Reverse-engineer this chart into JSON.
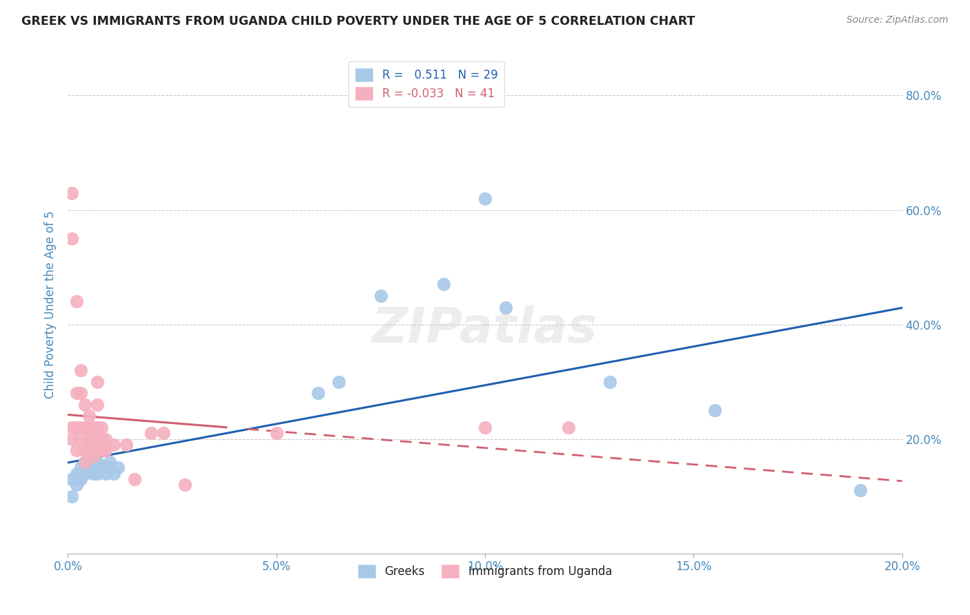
{
  "title": "GREEK VS IMMIGRANTS FROM UGANDA CHILD POVERTY UNDER THE AGE OF 5 CORRELATION CHART",
  "source": "Source: ZipAtlas.com",
  "ylabel_left": "Child Poverty Under the Age of 5",
  "legend_label1": "R =   0.511   N = 29",
  "legend_label2": "R = -0.033   N = 41",
  "legend_bottom_label1": "Greeks",
  "legend_bottom_label2": "Immigrants from Uganda",
  "blue_color": "#a8c8e8",
  "pink_color": "#f4b0be",
  "blue_line_color": "#2060b0",
  "pink_line_color": "#d06070",
  "background_color": "#ffffff",
  "grid_color": "#bbbbbb",
  "title_color": "#222222",
  "axis_label_color": "#4488bb",
  "tick_color": "#4488bb",
  "greek_x": [
    0.001,
    0.001,
    0.002,
    0.002,
    0.003,
    0.003,
    0.004,
    0.004,
    0.005,
    0.005,
    0.006,
    0.006,
    0.007,
    0.007,
    0.008,
    0.009,
    0.01,
    0.01,
    0.011,
    0.012,
    0.06,
    0.065,
    0.075,
    0.09,
    0.1,
    0.105,
    0.13,
    0.155,
    0.19
  ],
  "greek_y": [
    0.1,
    0.13,
    0.12,
    0.14,
    0.13,
    0.15,
    0.14,
    0.16,
    0.15,
    0.16,
    0.14,
    0.15,
    0.14,
    0.16,
    0.15,
    0.14,
    0.15,
    0.16,
    0.14,
    0.15,
    0.28,
    0.3,
    0.45,
    0.47,
    0.62,
    0.43,
    0.3,
    0.25,
    0.11
  ],
  "uganda_x": [
    0.001,
    0.001,
    0.001,
    0.001,
    0.002,
    0.002,
    0.002,
    0.002,
    0.003,
    0.003,
    0.003,
    0.003,
    0.004,
    0.004,
    0.004,
    0.004,
    0.005,
    0.005,
    0.005,
    0.005,
    0.006,
    0.006,
    0.006,
    0.006,
    0.007,
    0.007,
    0.007,
    0.008,
    0.008,
    0.008,
    0.009,
    0.009,
    0.011,
    0.014,
    0.016,
    0.02,
    0.023,
    0.028,
    0.05,
    0.1,
    0.12
  ],
  "uganda_y": [
    0.63,
    0.55,
    0.22,
    0.2,
    0.44,
    0.28,
    0.22,
    0.18,
    0.32,
    0.28,
    0.22,
    0.2,
    0.26,
    0.22,
    0.18,
    0.16,
    0.24,
    0.22,
    0.2,
    0.18,
    0.22,
    0.2,
    0.18,
    0.17,
    0.3,
    0.26,
    0.22,
    0.22,
    0.2,
    0.18,
    0.2,
    0.18,
    0.19,
    0.19,
    0.13,
    0.21,
    0.21,
    0.12,
    0.21,
    0.22,
    0.22
  ],
  "xlim": [
    0,
    0.2
  ],
  "ylim": [
    0,
    0.87
  ],
  "x_ticks": [
    0,
    0.05,
    0.1,
    0.15,
    0.2
  ],
  "x_tick_labels": [
    "0.0%",
    "5.0%",
    "10.0%",
    "15.0%",
    "20.0%"
  ],
  "y_ticks": [
    0.0,
    0.2,
    0.4,
    0.6,
    0.8
  ],
  "y_tick_labels_right": [
    "",
    "20.0%",
    "40.0%",
    "60.0%",
    "80.0%"
  ]
}
